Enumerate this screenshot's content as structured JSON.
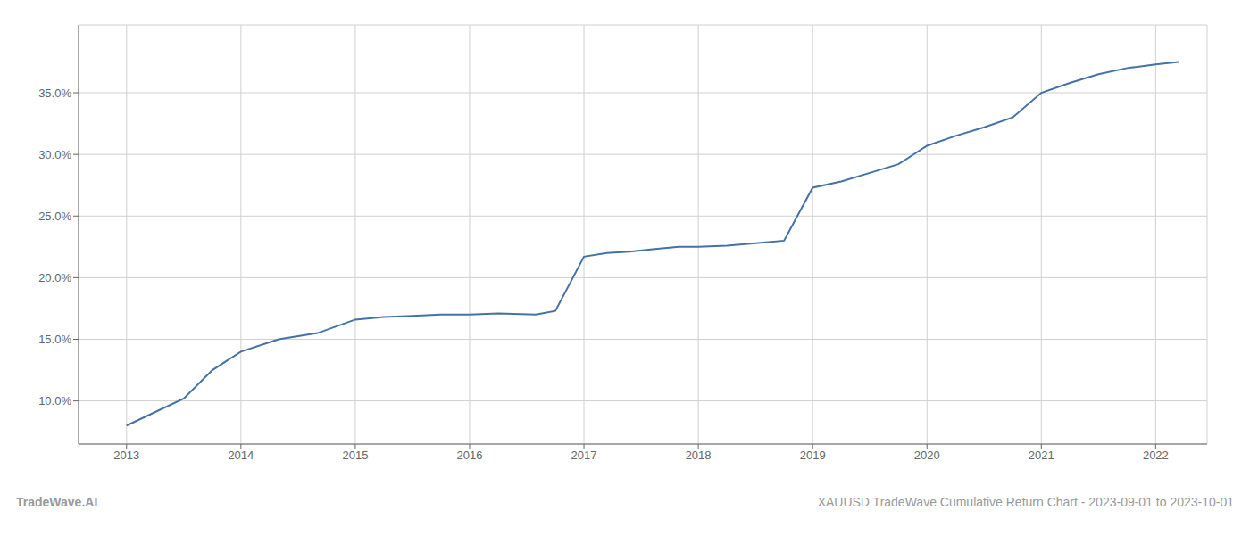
{
  "chart_data": {
    "type": "line",
    "x": [
      2013.0,
      2013.5,
      2013.75,
      2014.0,
      2014.33,
      2014.67,
      2015.0,
      2015.25,
      2015.5,
      2015.75,
      2016.0,
      2016.25,
      2016.58,
      2016.75,
      2017.0,
      2017.2,
      2017.4,
      2017.6,
      2017.83,
      2018.0,
      2018.25,
      2018.5,
      2018.75,
      2019.0,
      2019.25,
      2019.5,
      2019.75,
      2020.0,
      2020.25,
      2020.5,
      2020.75,
      2021.0,
      2021.25,
      2021.5,
      2021.75,
      2022.0,
      2022.2
    ],
    "values": [
      8.0,
      10.2,
      12.5,
      14.0,
      15.0,
      15.5,
      16.6,
      16.8,
      16.9,
      17.0,
      17.0,
      17.1,
      17.0,
      17.3,
      21.7,
      22.0,
      22.1,
      22.3,
      22.5,
      22.5,
      22.6,
      22.8,
      23.0,
      27.3,
      27.8,
      28.5,
      29.2,
      30.7,
      31.5,
      32.2,
      33.0,
      35.0,
      35.8,
      36.5,
      37.0,
      37.3,
      37.5
    ],
    "color": "#4472a8",
    "xlim": [
      2012.58,
      2022.45
    ],
    "ylim": [
      6.5,
      40.5
    ],
    "xticks": [
      2013,
      2014,
      2015,
      2016,
      2017,
      2018,
      2019,
      2020,
      2021,
      2022
    ],
    "yticks": [
      {
        "value": 10.0,
        "label": "10.0%"
      },
      {
        "value": 15.0,
        "label": "15.0%"
      },
      {
        "value": 20.0,
        "label": "20.0%"
      },
      {
        "value": 25.0,
        "label": "25.0%"
      },
      {
        "value": 30.0,
        "label": "30.0%"
      },
      {
        "value": 35.0,
        "label": "35.0%"
      }
    ],
    "grid": true,
    "annotations": [
      "TradeWave.AI",
      "XAUUSD TradeWave Cumulative Return Chart - 2023-09-01 to 2023-10-01"
    ]
  }
}
